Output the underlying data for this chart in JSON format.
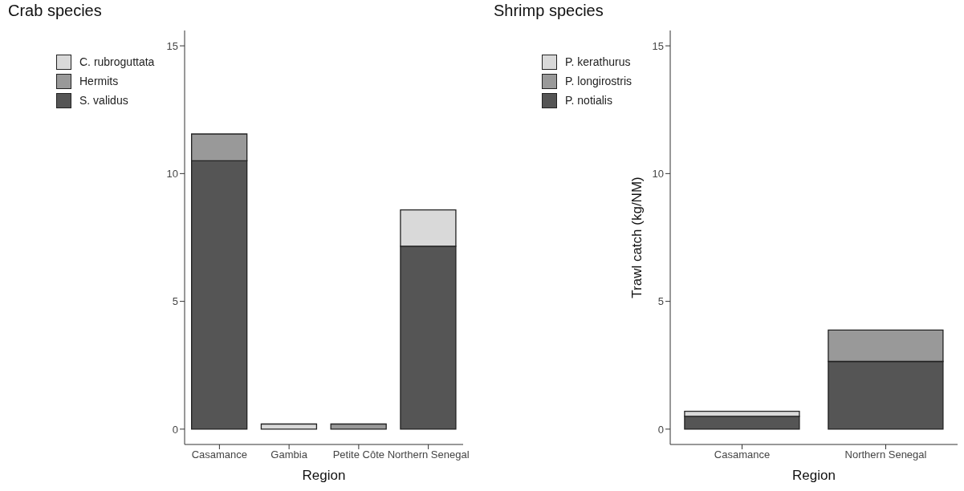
{
  "chart_data": [
    {
      "type": "bar",
      "title": "Crab species",
      "xlabel": "Region",
      "categories": [
        "Casamance",
        "Gambia",
        "Petite Côte",
        "Northern Senegal"
      ],
      "stacked": true,
      "ylim": [
        -0.6,
        15.6
      ],
      "yticks": [
        0,
        5,
        10,
        15
      ],
      "grid": false,
      "legend": "top left",
      "series": [
        {
          "name": "S. validus",
          "color": "#555555",
          "values": [
            10.5,
            0,
            0,
            7.16
          ]
        },
        {
          "name": "Hermits",
          "color": "#999999",
          "values": [
            1.05,
            0,
            0.2,
            0
          ]
        },
        {
          "name": "C. rubroguttata",
          "color": "#d9d9d9",
          "values": [
            0,
            0.2,
            0,
            1.42
          ]
        }
      ]
    },
    {
      "type": "bar",
      "title": "Shrimp species",
      "xlabel": "Region",
      "ylabel": "Trawl catch (kg/NM)",
      "categories": [
        "Casamance",
        "Northern Senegal"
      ],
      "stacked": true,
      "ylim": [
        -0.6,
        15.6
      ],
      "yticks": [
        0,
        5,
        10,
        15
      ],
      "grid": false,
      "legend": "top left",
      "series": [
        {
          "name": "P. notialis",
          "color": "#555555",
          "values": [
            0.5,
            2.65
          ]
        },
        {
          "name": "P. longirostris",
          "color": "#999999",
          "values": [
            0,
            1.23
          ]
        },
        {
          "name": "P. kerathurus",
          "color": "#d9d9d9",
          "values": [
            0.2,
            0
          ]
        }
      ]
    }
  ]
}
